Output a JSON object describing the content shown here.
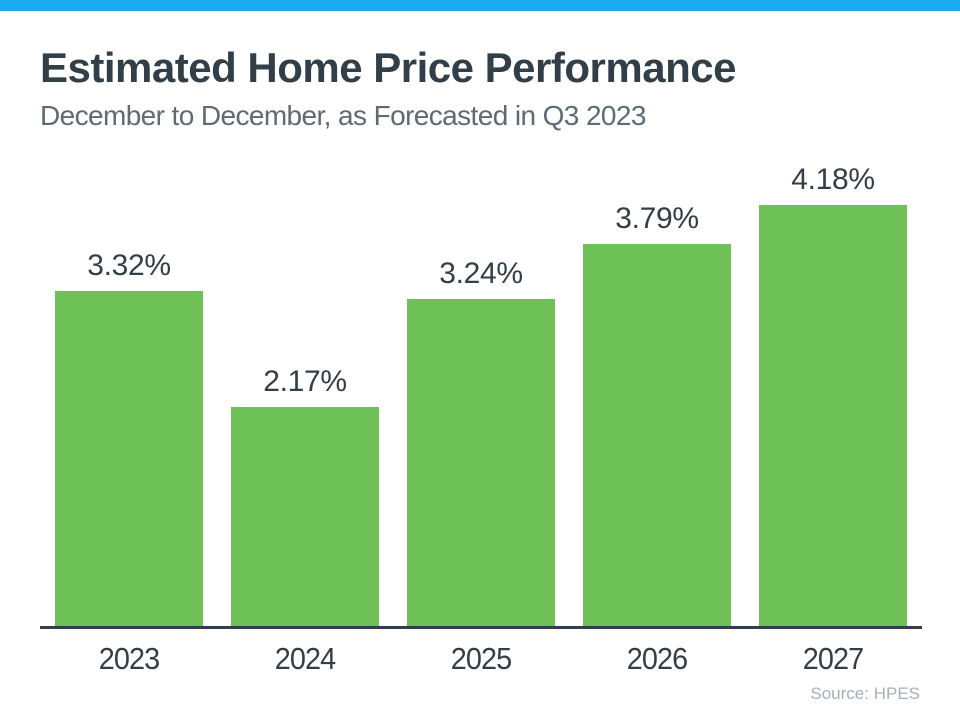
{
  "page": {
    "accent_bar_color": "#18ACEC",
    "background_color": "#FFFFFF",
    "text_color": "#333F48",
    "subtitle_color": "#5D6B74",
    "source_color": "#A7B0B8"
  },
  "header": {
    "title": "Estimated Home Price Performance",
    "subtitle": "December to December, as Forecasted in Q3 2023"
  },
  "chart_data": {
    "type": "bar",
    "title": "Estimated Home Price Performance",
    "subtitle": "December to December, as Forecasted in Q3 2023",
    "categories": [
      "2023",
      "2024",
      "2025",
      "2026",
      "2027"
    ],
    "values": [
      3.32,
      2.17,
      3.24,
      3.79,
      4.18
    ],
    "value_labels": [
      "3.32%",
      "2.17%",
      "3.24%",
      "3.79%",
      "4.18%"
    ],
    "unit": "%",
    "bar_color": "#6EC156",
    "ylim": [
      0,
      4.5
    ],
    "grid": false,
    "legend": false,
    "value_labels_position": "above-bars",
    "axis_line_color": "#333F48"
  },
  "footer": {
    "source": "Source: HPES"
  }
}
